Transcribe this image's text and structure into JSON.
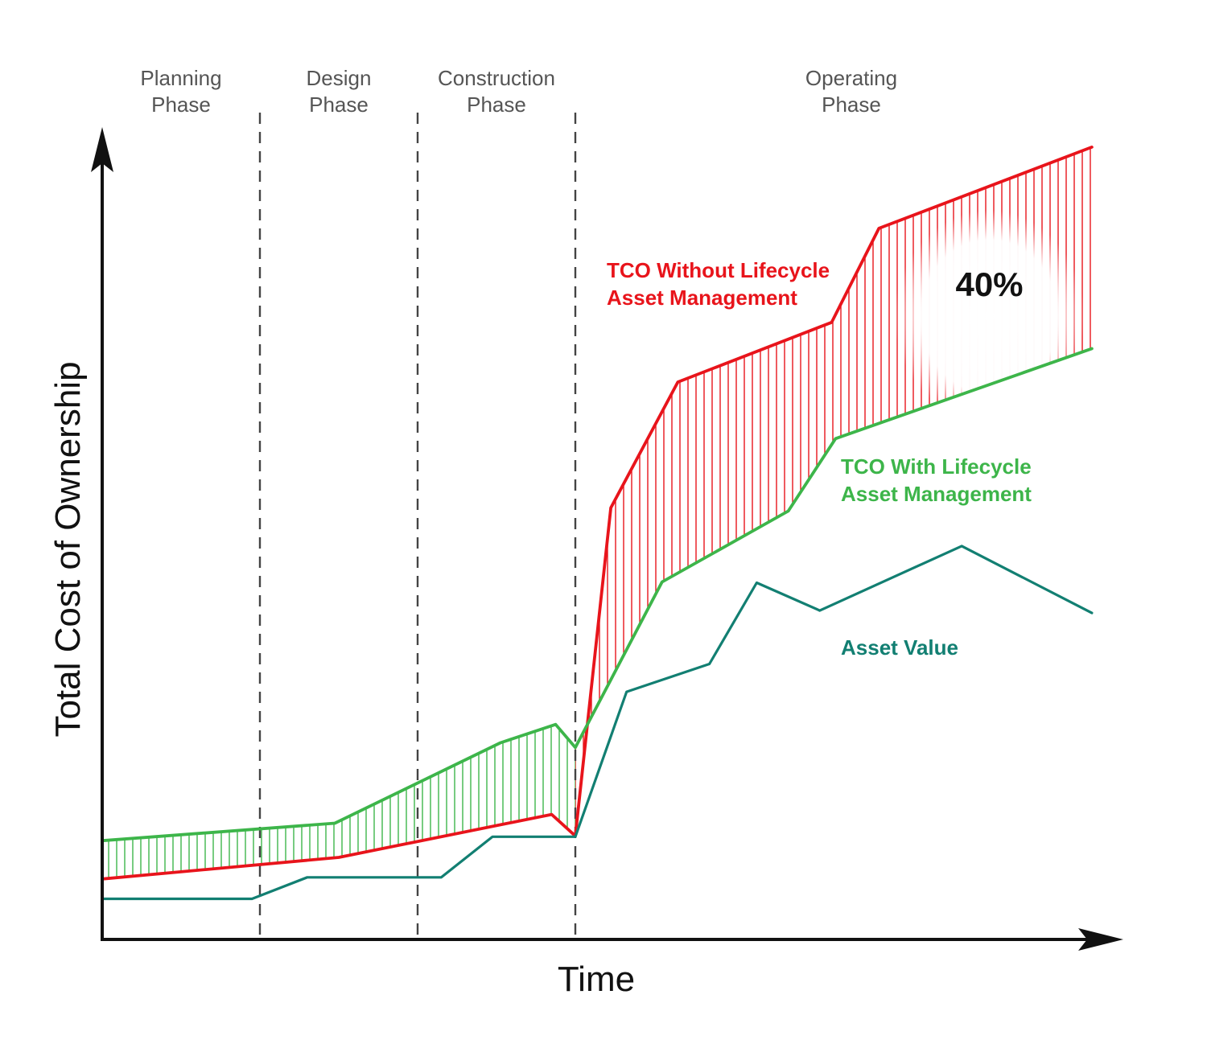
{
  "chart_data": {
    "type": "line",
    "title": "",
    "xlabel": "Time",
    "ylabel": "Total Cost of Ownership",
    "ylim": [
      0,
      100
    ],
    "grid": false,
    "phases": [
      {
        "line1": "Planning",
        "line2": "Phase",
        "start": 0,
        "end": 20
      },
      {
        "line1": "Design",
        "line2": "Phase",
        "start": 20,
        "end": 40
      },
      {
        "line1": "Construction",
        "line2": "Phase",
        "start": 40,
        "end": 60
      },
      {
        "line1": "Operating",
        "line2": "Phase",
        "start": 60,
        "end": 130
      }
    ],
    "phase_boundaries": [
      20,
      40,
      60
    ],
    "series": [
      {
        "name": "TCO Without Lifecycle Asset Management",
        "name_lines": [
          "TCO Without Lifecycle",
          "Asset Management"
        ],
        "color": "#e8141b",
        "points": [
          [
            0,
            7.6
          ],
          [
            30,
            10.3
          ],
          [
            57,
            15.7
          ],
          [
            60,
            13.0
          ],
          [
            64.5,
            54.2
          ],
          [
            73,
            70.0
          ],
          [
            92.5,
            77.5
          ],
          [
            98.5,
            89.3
          ],
          [
            125.5,
            99.5
          ]
        ]
      },
      {
        "name": "TCO With Lifecycle Asset Management",
        "name_lines": [
          "TCO With Lifecycle",
          "Asset Management"
        ],
        "color": "#3db54a",
        "points": [
          [
            0,
            12.4
          ],
          [
            29.5,
            14.6
          ],
          [
            50.5,
            24.7
          ],
          [
            57.5,
            27.0
          ],
          [
            60,
            24.1
          ],
          [
            71,
            44.9
          ],
          [
            87,
            53.8
          ],
          [
            93,
            62.9
          ],
          [
            125.5,
            74.2
          ]
        ]
      },
      {
        "name": "Asset Value",
        "name_lines": [
          "Asset Value"
        ],
        "color": "#127f72",
        "points": [
          [
            0,
            5.1
          ],
          [
            19,
            5.1
          ],
          [
            26,
            7.8
          ],
          [
            43,
            7.8
          ],
          [
            49.5,
            12.9
          ],
          [
            60,
            12.9
          ],
          [
            66.5,
            31.1
          ],
          [
            77,
            34.6
          ],
          [
            83,
            44.8
          ],
          [
            91,
            41.3
          ],
          [
            109,
            49.4
          ],
          [
            125.5,
            41.0
          ]
        ]
      }
    ],
    "annotations": [
      {
        "text": "40%",
        "x": 112.5,
        "y": 82.3
      }
    ]
  }
}
